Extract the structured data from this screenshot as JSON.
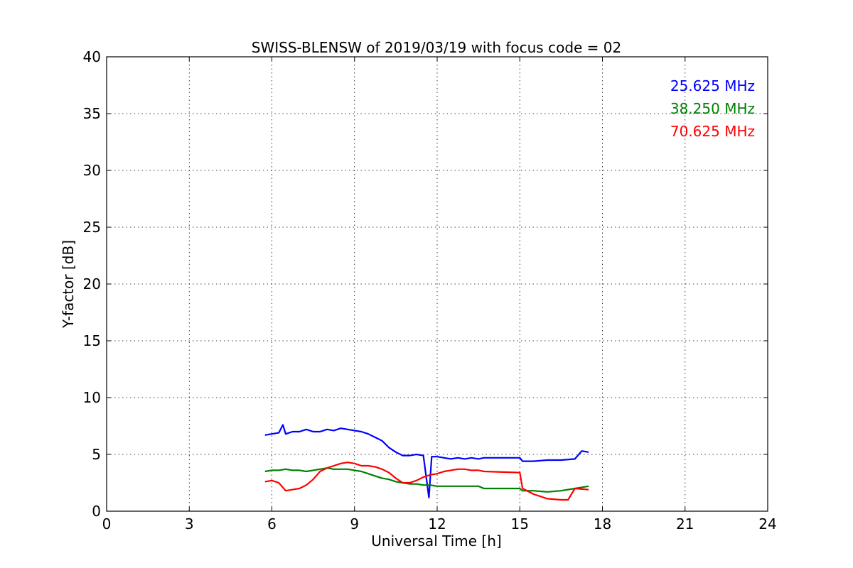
{
  "chart_data": {
    "type": "line",
    "title": "SWISS-BLENSW of 2019/03/19 with focus code = 02",
    "xlabel": "Universal Time [h]",
    "ylabel": "Y-factor [dB]",
    "xlim": [
      0,
      24
    ],
    "ylim": [
      0,
      40
    ],
    "xticks": [
      0,
      3,
      6,
      9,
      12,
      15,
      18,
      21,
      24
    ],
    "yticks": [
      0,
      5,
      10,
      15,
      20,
      25,
      30,
      35,
      40
    ],
    "grid": true,
    "legend_position": "top-right",
    "series": [
      {
        "name": "25.625 MHz",
        "color": "#0000ff",
        "x": [
          5.75,
          6.0,
          6.25,
          6.4,
          6.5,
          6.75,
          7.0,
          7.25,
          7.5,
          7.75,
          8.0,
          8.25,
          8.5,
          8.75,
          9.0,
          9.25,
          9.5,
          9.75,
          10.0,
          10.25,
          10.5,
          10.75,
          11.0,
          11.25,
          11.5,
          11.7,
          11.8,
          12.0,
          12.25,
          12.5,
          12.75,
          13.0,
          13.25,
          13.5,
          13.7,
          15.0,
          15.1,
          15.5,
          16.0,
          16.5,
          17.0,
          17.25,
          17.5
        ],
        "y": [
          6.7,
          6.8,
          6.9,
          7.6,
          6.8,
          7.0,
          7.0,
          7.2,
          7.0,
          7.0,
          7.2,
          7.1,
          7.3,
          7.2,
          7.1,
          7.0,
          6.8,
          6.5,
          6.2,
          5.6,
          5.2,
          4.9,
          4.9,
          5.0,
          4.9,
          1.2,
          4.8,
          4.8,
          4.7,
          4.6,
          4.7,
          4.6,
          4.7,
          4.6,
          4.7,
          4.7,
          4.4,
          4.4,
          4.5,
          4.5,
          4.6,
          5.3,
          5.2
        ]
      },
      {
        "name": "38.250 MHz",
        "color": "#008000",
        "x": [
          5.75,
          6.0,
          6.25,
          6.5,
          6.75,
          7.0,
          7.25,
          7.5,
          7.75,
          8.0,
          8.25,
          8.5,
          8.75,
          9.0,
          9.25,
          9.5,
          9.75,
          10.0,
          10.25,
          10.5,
          10.75,
          11.0,
          11.25,
          11.5,
          11.75,
          12.0,
          12.5,
          13.0,
          13.5,
          13.7,
          15.0,
          15.1,
          15.5,
          16.0,
          16.5,
          17.0,
          17.5
        ],
        "y": [
          3.5,
          3.6,
          3.6,
          3.7,
          3.6,
          3.6,
          3.5,
          3.6,
          3.7,
          3.8,
          3.7,
          3.7,
          3.7,
          3.6,
          3.5,
          3.3,
          3.1,
          2.9,
          2.8,
          2.6,
          2.5,
          2.4,
          2.4,
          2.3,
          2.3,
          2.2,
          2.2,
          2.2,
          2.2,
          2.0,
          2.0,
          1.8,
          1.8,
          1.7,
          1.8,
          2.0,
          2.2
        ]
      },
      {
        "name": "70.625 MHz",
        "color": "#ff0000",
        "x": [
          5.75,
          6.0,
          6.25,
          6.5,
          6.75,
          7.0,
          7.25,
          7.5,
          7.75,
          8.0,
          8.25,
          8.5,
          8.75,
          9.0,
          9.25,
          9.5,
          9.75,
          10.0,
          10.25,
          10.5,
          10.75,
          11.0,
          11.25,
          11.5,
          11.75,
          12.0,
          12.25,
          12.5,
          12.75,
          13.0,
          13.25,
          13.5,
          13.7,
          15.0,
          15.1,
          15.5,
          16.0,
          16.5,
          16.75,
          17.0,
          17.5
        ],
        "y": [
          2.6,
          2.7,
          2.5,
          1.8,
          1.9,
          2.0,
          2.3,
          2.8,
          3.5,
          3.8,
          4.0,
          4.2,
          4.3,
          4.2,
          4.0,
          4.0,
          3.9,
          3.7,
          3.4,
          2.9,
          2.5,
          2.5,
          2.7,
          3.0,
          3.2,
          3.3,
          3.5,
          3.6,
          3.7,
          3.7,
          3.6,
          3.6,
          3.5,
          3.4,
          2.0,
          1.5,
          1.1,
          1.0,
          1.0,
          2.0,
          1.9
        ]
      }
    ]
  }
}
